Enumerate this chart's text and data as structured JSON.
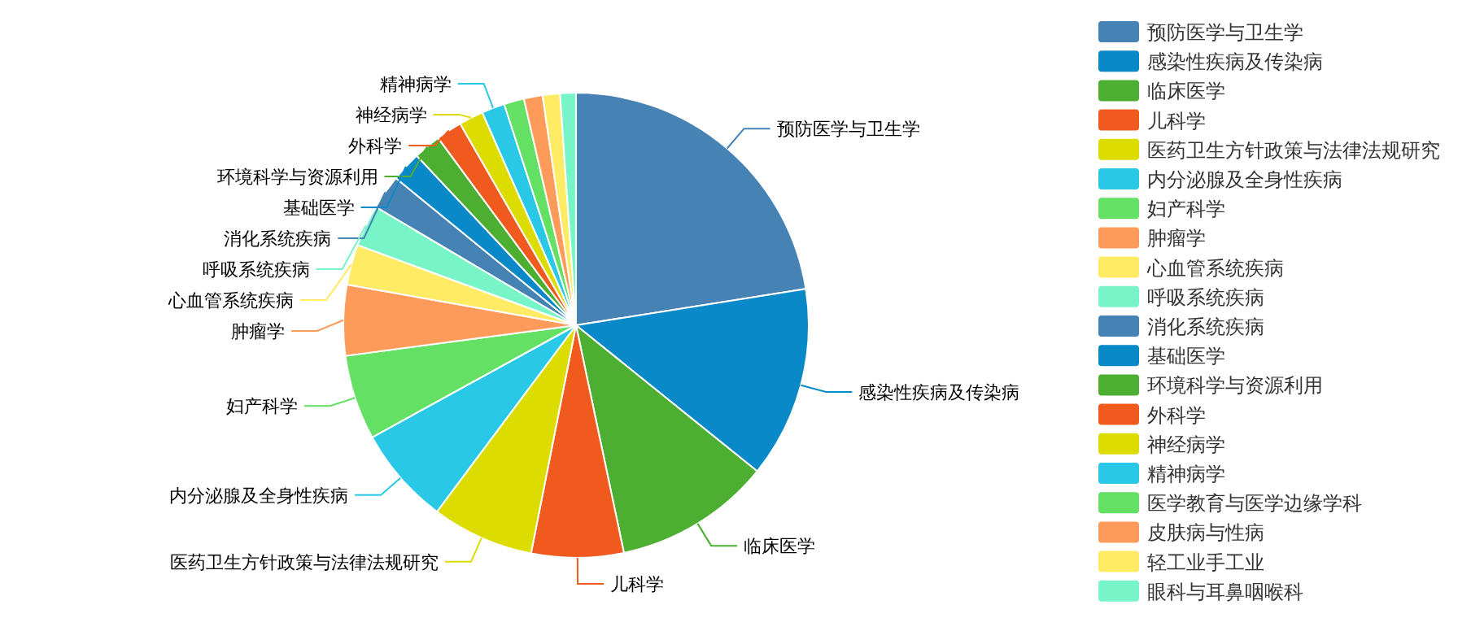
{
  "chart_data": {
    "type": "pie",
    "legend": "right",
    "categories": [
      "预防医学与卫生学",
      "感染性疾病及传染病",
      "临床医学",
      "儿科学",
      "医药卫生方针政策与法律法规研究",
      "内分泌腺及全身性疾病",
      "妇产科学",
      "肿瘤学",
      "心血管系统疾病",
      "呼吸系统疾病",
      "消化系统疾病",
      "基础医学",
      "环境科学与资源利用",
      "外科学",
      "神经病学",
      "精神病学",
      "医学教育与医学边缘学科",
      "皮肤病与性病",
      "轻工业手工业",
      "眼科与耳鼻咽喉科"
    ],
    "values": [
      22.5,
      13.3,
      10.9,
      6.4,
      7.1,
      6.8,
      5.9,
      4.9,
      2.8,
      2.9,
      2.4,
      2.1,
      1.9,
      1.8,
      1.7,
      1.6,
      1.4,
      1.3,
      1.2,
      1.1
    ],
    "colors": [
      "#4682b4",
      "#0a89c8",
      "#4caf32",
      "#f05a1e",
      "#dcdc00",
      "#28c8e6",
      "#64e164",
      "#ff9b5a",
      "#ffeb64",
      "#78f5c8",
      "#4682b4",
      "#0a89c8",
      "#4caf32",
      "#f05a1e",
      "#dcdc00",
      "#28c8e6",
      "#64e164",
      "#ff9b5a",
      "#ffeb64",
      "#78f5c8"
    ]
  }
}
